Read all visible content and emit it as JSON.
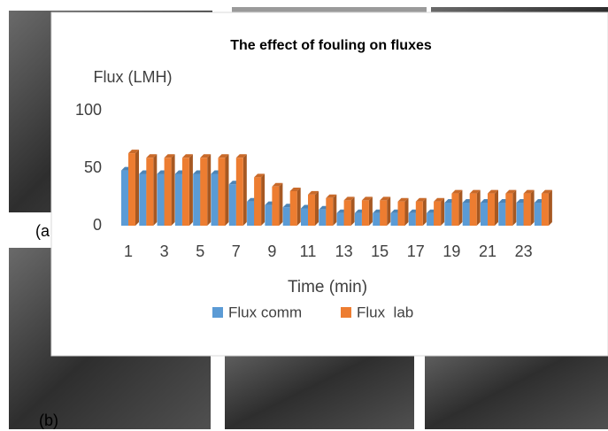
{
  "chart_data": {
    "type": "bar3d",
    "title": "The effect of fouling on fluxes",
    "ylabel": "Flux (LMH)",
    "xlabel": "Time (min)",
    "categories": [
      1,
      null,
      3,
      null,
      5,
      null,
      7,
      null,
      9,
      null,
      11,
      null,
      13,
      null,
      15,
      null,
      17,
      null,
      19,
      null,
      21,
      null,
      23,
      null
    ],
    "series": [
      {
        "name": "Flux comm",
        "color": "#5b9bd5",
        "values": [
          48,
          45,
          45,
          45,
          45,
          45,
          36,
          21,
          18,
          16,
          15,
          14,
          11,
          11,
          11,
          11,
          11,
          11,
          20,
          20,
          20,
          20,
          20,
          20
        ]
      },
      {
        "name": "Flux  lab",
        "color": "#ed7d31",
        "values": [
          63,
          59,
          59,
          59,
          59,
          59,
          59,
          42,
          34,
          30,
          27,
          24,
          22,
          22,
          22,
          21,
          21,
          21,
          28,
          28,
          28,
          28,
          28,
          28
        ]
      }
    ],
    "ylim": [
      0,
      100
    ],
    "yticks": [
      0,
      50,
      100
    ],
    "grid": false,
    "legend": "bottom"
  },
  "panel_labels": [
    "(a",
    "(b)"
  ]
}
